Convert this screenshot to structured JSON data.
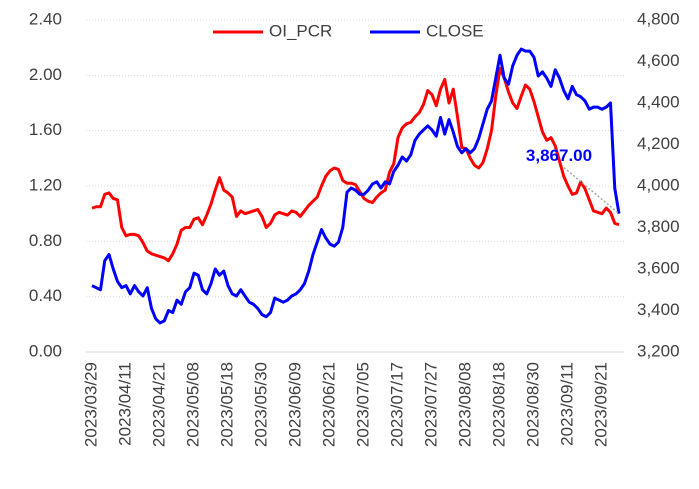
{
  "chart_data": {
    "type": "line",
    "categories": [
      "2023/03/29",
      null,
      null,
      null,
      null,
      null,
      null,
      null,
      "2023/04/11",
      null,
      null,
      null,
      null,
      null,
      null,
      null,
      "2023/04/21",
      null,
      null,
      null,
      null,
      null,
      null,
      null,
      "2023/05/08",
      null,
      null,
      null,
      null,
      null,
      null,
      null,
      "2023/05/18",
      null,
      null,
      null,
      null,
      null,
      null,
      null,
      "2023/05/30",
      null,
      null,
      null,
      null,
      null,
      null,
      null,
      "2023/06/09",
      null,
      null,
      null,
      null,
      null,
      null,
      null,
      "2023/06/21",
      null,
      null,
      null,
      null,
      null,
      null,
      null,
      "2023/07/05",
      null,
      null,
      null,
      null,
      null,
      null,
      null,
      "2023/07/17",
      null,
      null,
      null,
      null,
      null,
      null,
      null,
      "2023/07/27",
      null,
      null,
      null,
      null,
      null,
      null,
      null,
      "2023/08/08",
      null,
      null,
      null,
      null,
      null,
      null,
      null,
      "2023/08/18",
      null,
      null,
      null,
      null,
      null,
      null,
      null,
      "2023/08/30",
      null,
      null,
      null,
      null,
      null,
      null,
      null,
      "2023/09/11",
      null,
      null,
      null,
      null,
      null,
      null,
      null,
      "2023/09/21",
      null,
      null,
      null,
      null
    ],
    "series": [
      {
        "name": "OI_PCR",
        "color": "#ff0000",
        "values": [
          1.04,
          1.05,
          1.05,
          1.14,
          1.15,
          1.11,
          1.1,
          0.9,
          0.84,
          0.85,
          0.85,
          0.84,
          0.79,
          0.73,
          0.71,
          0.7,
          0.69,
          0.68,
          0.66,
          0.71,
          0.78,
          0.88,
          0.9,
          0.9,
          0.96,
          0.97,
          0.92,
          0.99,
          1.07,
          1.17,
          1.26,
          1.17,
          1.15,
          1.12,
          0.98,
          1.02,
          1.0,
          1.01,
          1.02,
          1.03,
          0.98,
          0.9,
          0.93,
          0.99,
          1.01,
          1.0,
          0.99,
          1.02,
          1.01,
          0.98,
          1.02,
          1.06,
          1.09,
          1.12,
          1.2,
          1.27,
          1.31,
          1.33,
          1.32,
          1.24,
          1.22,
          1.22,
          1.21,
          1.16,
          1.11,
          1.09,
          1.08,
          1.12,
          1.15,
          1.17,
          1.3,
          1.36,
          1.55,
          1.62,
          1.65,
          1.66,
          1.7,
          1.73,
          1.79,
          1.89,
          1.86,
          1.78,
          1.9,
          1.97,
          1.8,
          1.9,
          1.7,
          1.48,
          1.47,
          1.4,
          1.35,
          1.33,
          1.37,
          1.47,
          1.6,
          1.85,
          2.05,
          1.98,
          1.88,
          1.8,
          1.76,
          1.85,
          1.93,
          1.9,
          1.81,
          1.7,
          1.59,
          1.53,
          1.55,
          1.49,
          1.38,
          1.27,
          1.2,
          1.14,
          1.15,
          1.23,
          1.18,
          1.1,
          1.02,
          1.01,
          1.0,
          1.04,
          1.01,
          0.93,
          0.92
        ]
      },
      {
        "name": "CLOSE",
        "color": "#0000ff",
        "axis": "y2",
        "values": [
          3520,
          3510,
          3500,
          3640,
          3670,
          3600,
          3540,
          3510,
          3520,
          3480,
          3520,
          3490,
          3470,
          3510,
          3410,
          3360,
          3340,
          3350,
          3400,
          3390,
          3450,
          3430,
          3490,
          3510,
          3580,
          3570,
          3500,
          3480,
          3530,
          3600,
          3570,
          3590,
          3520,
          3480,
          3470,
          3500,
          3470,
          3440,
          3430,
          3410,
          3380,
          3370,
          3390,
          3460,
          3450,
          3440,
          3450,
          3470,
          3480,
          3500,
          3530,
          3590,
          3670,
          3730,
          3790,
          3750,
          3720,
          3710,
          3730,
          3800,
          3970,
          3990,
          3980,
          3960,
          3960,
          3980,
          4010,
          4020,
          3990,
          4020,
          4010,
          4070,
          4100,
          4140,
          4120,
          4150,
          4220,
          4250,
          4270,
          4290,
          4270,
          4240,
          4330,
          4250,
          4320,
          4260,
          4190,
          4160,
          4180,
          4160,
          4180,
          4230,
          4300,
          4370,
          4410,
          4520,
          4630,
          4520,
          4490,
          4580,
          4630,
          4660,
          4650,
          4650,
          4620,
          4530,
          4550,
          4520,
          4480,
          4560,
          4520,
          4460,
          4420,
          4480,
          4440,
          4430,
          4410,
          4370,
          4380,
          4380,
          4370,
          4380,
          4400,
          3990,
          3867
        ],
        "value_labels": [
          null,
          null,
          null,
          null,
          null,
          null,
          null,
          null,
          null,
          null,
          null,
          null,
          null,
          null,
          null,
          null,
          null,
          null,
          null,
          null,
          null,
          null,
          null,
          null,
          null,
          null,
          null,
          null,
          null,
          null,
          null,
          null,
          null,
          null,
          null,
          null,
          null,
          null,
          null,
          null,
          null,
          null,
          null,
          null,
          null,
          null,
          null,
          null,
          null,
          null,
          null,
          null,
          null,
          null,
          null,
          null,
          null,
          null,
          null,
          null,
          null,
          null,
          null,
          null,
          null,
          null,
          null,
          null,
          null,
          null,
          null,
          null,
          null,
          null,
          null,
          null,
          null,
          null,
          null,
          null,
          null,
          null,
          null,
          null,
          null,
          null,
          null,
          null,
          null,
          null,
          null,
          null,
          null,
          null,
          null,
          null,
          null,
          null,
          null,
          null,
          null,
          null,
          null,
          null,
          null,
          null,
          null,
          null,
          null,
          null,
          null,
          null,
          null,
          null,
          null,
          null,
          null,
          null,
          null,
          null,
          null,
          null,
          null,
          null,
          "3,867.00"
        ]
      }
    ],
    "ylim": [
      0,
      2.4
    ],
    "yticks": [
      {
        "value": 0,
        "label": "0.00"
      },
      {
        "value": 0.4,
        "label": "0.40"
      },
      {
        "value": 0.8,
        "label": "0.80"
      },
      {
        "value": 1.2,
        "label": "1.20"
      },
      {
        "value": 1.6,
        "label": "1.60"
      },
      {
        "value": 2.0,
        "label": "2.00"
      },
      {
        "value": 2.4,
        "label": "2.40"
      }
    ],
    "y2lim": [
      3200,
      4800
    ],
    "y2ticks": [
      {
        "value": 3200,
        "label": "3,200"
      },
      {
        "value": 3400,
        "label": "3,400"
      },
      {
        "value": 3600,
        "label": "3,600"
      },
      {
        "value": 3800,
        "label": "3,800"
      },
      {
        "value": 4000,
        "label": "4,000"
      },
      {
        "value": 4200,
        "label": "4,200"
      },
      {
        "value": 4400,
        "label": "4,400"
      },
      {
        "value": 4600,
        "label": "4,600"
      },
      {
        "value": 4800,
        "label": "4,800"
      }
    ],
    "grid": true,
    "legend": "top"
  }
}
